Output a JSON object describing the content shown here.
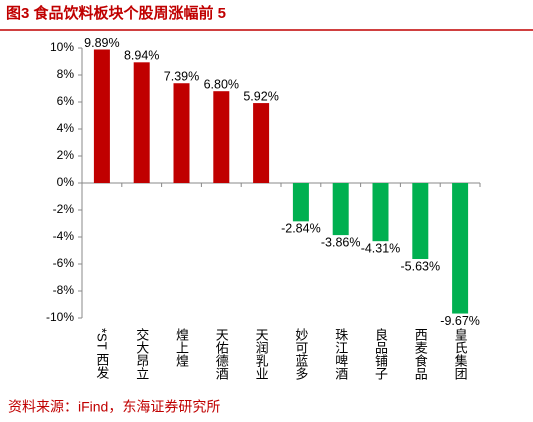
{
  "chart_data": {
    "type": "bar",
    "title": "图3  食品饮料板块个股周涨幅前 5",
    "source": "资料来源：iFind，东海证券研究所",
    "categories": [
      "*ST 西发",
      "交大昂立",
      "煌上煌",
      "天佑德酒",
      "天润乳业",
      "妙可蓝多",
      "珠江啤酒",
      "良品铺子",
      "西麦食品",
      "皇氏集团"
    ],
    "values": [
      9.89,
      8.94,
      7.39,
      6.8,
      5.92,
      -2.84,
      -3.86,
      -4.31,
      -5.63,
      -9.67
    ],
    "value_labels": [
      "9.89%",
      "8.94%",
      "7.39%",
      "6.80%",
      "5.92%",
      "-2.84%",
      "-3.86%",
      "-4.31%",
      "-5.63%",
      "-9.67%"
    ],
    "colors": [
      "#c00000",
      "#c00000",
      "#c00000",
      "#c00000",
      "#c00000",
      "#00b050",
      "#00b050",
      "#00b050",
      "#00b050",
      "#00b050"
    ],
    "ylim": [
      -10,
      10
    ],
    "yticks": [
      {
        "value": -10,
        "label": "-10%"
      },
      {
        "value": -8,
        "label": "-8%"
      },
      {
        "value": -6,
        "label": "-6%"
      },
      {
        "value": -4,
        "label": "-4%"
      },
      {
        "value": -2,
        "label": "-2%"
      },
      {
        "value": 0,
        "label": "0%"
      },
      {
        "value": 2,
        "label": "2%"
      },
      {
        "value": 4,
        "label": "4%"
      },
      {
        "value": 6,
        "label": "6%"
      },
      {
        "value": 8,
        "label": "8%"
      },
      {
        "value": 10,
        "label": "10%"
      }
    ]
  }
}
